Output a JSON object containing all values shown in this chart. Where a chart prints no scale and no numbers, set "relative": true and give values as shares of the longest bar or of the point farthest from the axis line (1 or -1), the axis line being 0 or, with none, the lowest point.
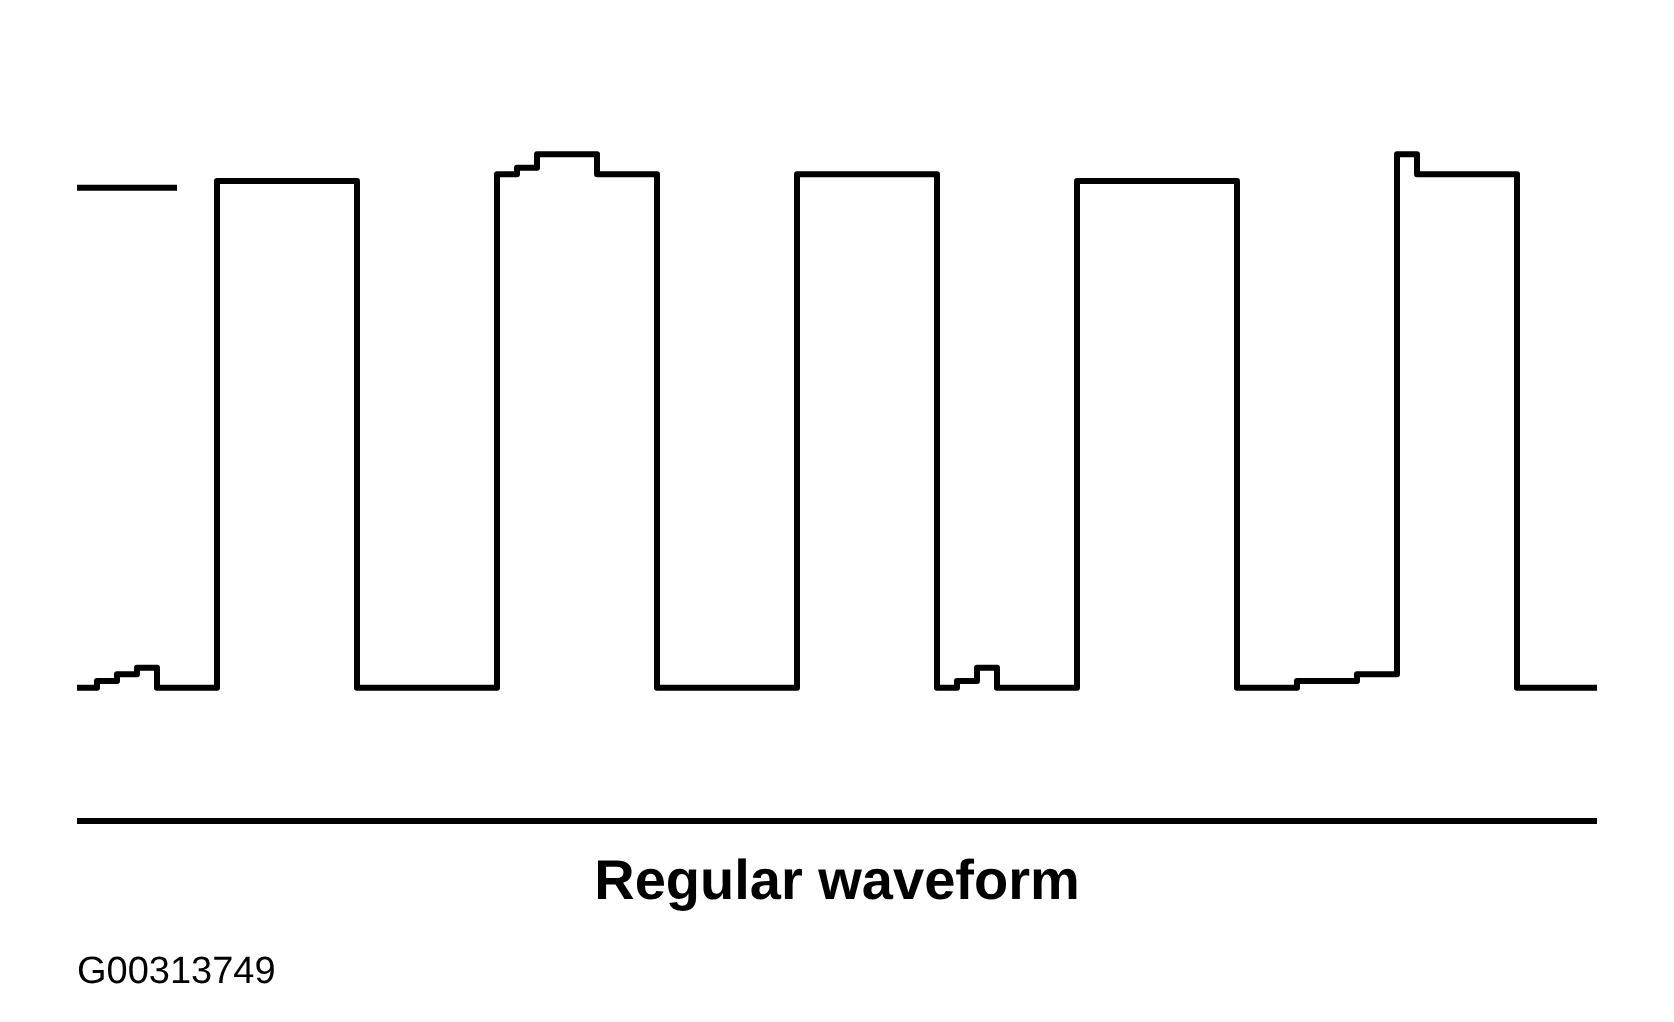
{
  "chart_data": {
    "type": "step",
    "relative": true,
    "xlabel": "Regular waveform",
    "annotations": [
      "G00313749"
    ],
    "grid": false,
    "marker": "none",
    "line_style": "solid",
    "categories": [
      null,
      null,
      null,
      null,
      null,
      null,
      null,
      null,
      null,
      null,
      null,
      null,
      null,
      null,
      null,
      null,
      null,
      null,
      null,
      null,
      null,
      null,
      null,
      null,
      null,
      null,
      null,
      null,
      null,
      null,
      null,
      null,
      null,
      null,
      null,
      null,
      null,
      null,
      null,
      null,
      null,
      null,
      null,
      null,
      null,
      null,
      null,
      null,
      null,
      null,
      null,
      null,
      null,
      null,
      null,
      null,
      null,
      null,
      null,
      null,
      null,
      null,
      null,
      null,
      null,
      null,
      null,
      null,
      null,
      null,
      null,
      null,
      null,
      null,
      null,
      null,
      null
    ],
    "series": [
      {
        "color": "#000000",
        "values": [
          0.2,
          0.21,
          0.22,
          0.23,
          0.2,
          0.2,
          0.2,
          0.96,
          0.96,
          0.96,
          0.96,
          0.96,
          0.96,
          0.96,
          0.2,
          0.2,
          0.2,
          0.2,
          0.2,
          0.2,
          0.2,
          0.97,
          0.98,
          1.0,
          1.0,
          1.0,
          0.97,
          0.97,
          0.97,
          0.2,
          0.2,
          0.2,
          0.2,
          0.2,
          0.2,
          0.2,
          0.97,
          0.97,
          0.97,
          0.97,
          0.97,
          0.97,
          0.97,
          0.2,
          0.21,
          0.23,
          0.2,
          0.2,
          0.2,
          0.2,
          0.96,
          0.96,
          0.96,
          0.96,
          0.96,
          0.96,
          0.96,
          0.96,
          0.2,
          0.2,
          0.2,
          0.21,
          0.21,
          0.21,
          0.22,
          0.22,
          1.0,
          0.97,
          0.97,
          0.97,
          0.97,
          0.97,
          0.2,
          0.2,
          0.2,
          0.2,
          0.2
        ]
      },
      {
        "color": "#000000",
        "values": [
          0.95,
          0.95,
          0.95,
          0.95,
          0.95,
          0.95,
          null,
          null,
          null,
          null,
          null,
          null,
          null,
          null,
          null,
          null,
          null,
          null,
          null,
          null,
          null,
          null,
          null,
          null,
          null,
          null,
          null,
          null,
          null,
          null,
          null,
          null,
          null,
          null,
          null,
          null,
          null,
          null,
          null,
          null,
          null,
          null,
          null,
          null,
          null,
          null,
          null,
          null,
          null,
          null,
          null,
          null,
          null,
          null,
          null,
          null,
          null,
          null,
          null,
          null,
          null,
          null,
          null,
          null,
          null,
          null,
          null,
          null,
          null,
          null,
          null,
          null,
          null,
          null,
          null,
          null,
          null
        ]
      }
    ]
  }
}
